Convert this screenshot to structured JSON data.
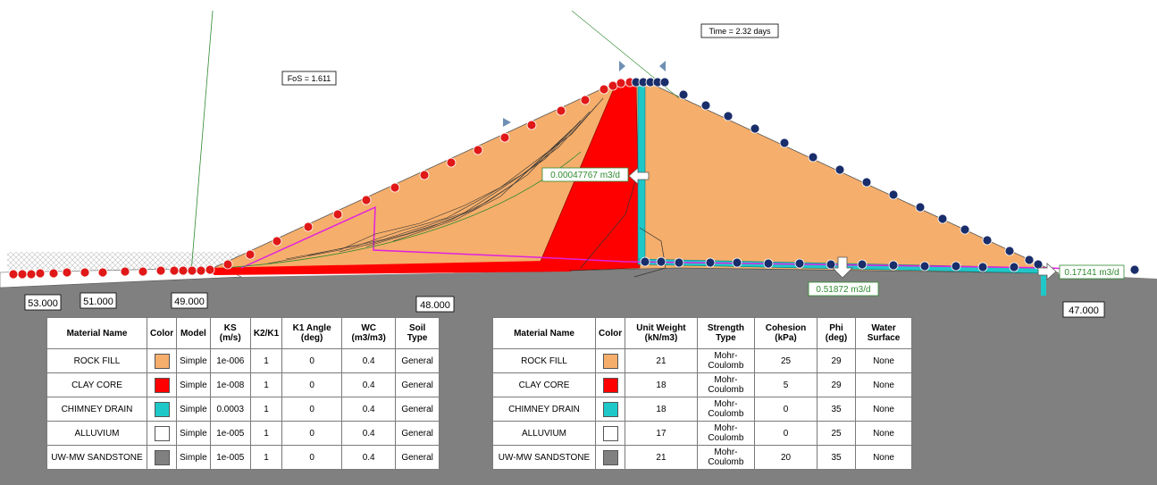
{
  "annotations": {
    "fos": "FoS = 1.611",
    "time": "Time = 2.32 days"
  },
  "flux_labels": {
    "upstream": "0.00047767 m3/d",
    "drain": "0.51872 m3/d",
    "toe": "0.17141 m3/d"
  },
  "elevations": [
    "53.000",
    "51.000",
    "49.000",
    "48.000",
    "47.000"
  ],
  "material_colors": {
    "rock_fill": "#f5ae6b",
    "clay_core": "#ff0000",
    "chimney_drain": "#1fc8c8",
    "alluvium": "#ffffff",
    "sandstone": "#808080"
  },
  "table_left": {
    "headers": [
      "Material Name",
      "Color",
      "Model",
      "KS (m/s)",
      "K2/K1",
      "K1 Angle (deg)",
      "WC (m3/m3)",
      "Soil Type"
    ],
    "rows": [
      {
        "name": "ROCK FILL",
        "color": "#f5ae6b",
        "model": "Simple",
        "ks": "1e-006",
        "k2k1": "1",
        "angle": "0",
        "wc": "0.4",
        "soil": "General"
      },
      {
        "name": "CLAY CORE",
        "color": "#ff0000",
        "model": "Simple",
        "ks": "1e-008",
        "k2k1": "1",
        "angle": "0",
        "wc": "0.4",
        "soil": "General"
      },
      {
        "name": "CHIMNEY DRAIN",
        "color": "#1fc8c8",
        "model": "Simple",
        "ks": "0.0003",
        "k2k1": "1",
        "angle": "0",
        "wc": "0.4",
        "soil": "General"
      },
      {
        "name": "ALLUVIUM",
        "color": "#ffffff",
        "model": "Simple",
        "ks": "1e-005",
        "k2k1": "1",
        "angle": "0",
        "wc": "0.4",
        "soil": "General"
      },
      {
        "name": "UW-MW SANDSTONE",
        "color": "#808080",
        "model": "Simple",
        "ks": "1e-005",
        "k2k1": "1",
        "angle": "0",
        "wc": "0.4",
        "soil": "General"
      }
    ]
  },
  "table_right": {
    "headers": [
      "Material Name",
      "Color",
      "Unit Weight (kN/m3)",
      "Strength Type",
      "Cohesion (kPa)",
      "Phi (deg)",
      "Water Surface"
    ],
    "rows": [
      {
        "name": "ROCK FILL",
        "color": "#f5ae6b",
        "uw": "21",
        "strength": "Mohr-Coulomb",
        "cohesion": "25",
        "phi": "29",
        "water": "None"
      },
      {
        "name": "CLAY CORE",
        "color": "#ff0000",
        "uw": "18",
        "strength": "Mohr-Coulomb",
        "cohesion": "5",
        "phi": "29",
        "water": "None"
      },
      {
        "name": "CHIMNEY DRAIN",
        "color": "#1fc8c8",
        "uw": "18",
        "strength": "Mohr-Coulomb",
        "cohesion": "0",
        "phi": "35",
        "water": "None"
      },
      {
        "name": "ALLUVIUM",
        "color": "#ffffff",
        "uw": "17",
        "strength": "Mohr-Coulomb",
        "cohesion": "0",
        "phi": "25",
        "water": "None"
      },
      {
        "name": "UW-MW SANDSTONE",
        "color": "#808080",
        "uw": "21",
        "strength": "Mohr-Coulomb",
        "cohesion": "20",
        "phi": "35",
        "water": "None"
      }
    ]
  }
}
